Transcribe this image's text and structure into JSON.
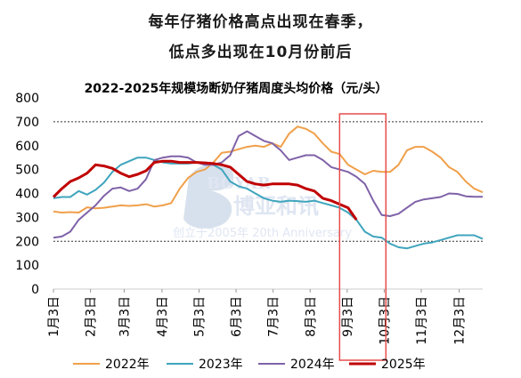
{
  "headline": {
    "line1": "每年仔猪价格高点出现在春季，",
    "line2": "低点多出现在10月份前后"
  },
  "watermark": {
    "cn": "博亚和讯",
    "en": "BOYAR",
    "tagline": "创立于2005年 20th Anniversary"
  },
  "chart_data": {
    "type": "line",
    "title": "2022-2025年规模场断奶仔猪周度头均价格（元/头）",
    "ylim": [
      0,
      800
    ],
    "yticks": [
      0,
      100,
      200,
      300,
      400,
      500,
      600,
      700,
      800
    ],
    "xlim": [
      1,
      52
    ],
    "x_tick_labels": [
      "1月3日",
      "2月3日",
      "3月3日",
      "4月3日",
      "5月3日",
      "6月3日",
      "7月3日",
      "8月3日",
      "9月3日",
      "10月3日",
      "11月3日",
      "12月3日"
    ],
    "x_tick_weeks": [
      1,
      5.4,
      9.4,
      13.9,
      18.3,
      22.7,
      27.1,
      31.5,
      35.9,
      40.3,
      44.7,
      49.2
    ],
    "reference_lines": [
      700,
      200
    ],
    "highlight_weeks": [
      35,
      40.5
    ],
    "legend_position": "bottom",
    "series": [
      {
        "name": "2022年",
        "color": "#f0a04b",
        "values": [
          325,
          320,
          322,
          320,
          342,
          338,
          340,
          345,
          350,
          348,
          350,
          355,
          345,
          350,
          360,
          420,
          465,
          490,
          500,
          530,
          570,
          575,
          585,
          595,
          600,
          595,
          610,
          595,
          650,
          680,
          670,
          650,
          610,
          575,
          565,
          520,
          500,
          480,
          495,
          490,
          490,
          520,
          580,
          595,
          595,
          575,
          550,
          510,
          490,
          450,
          420,
          405
        ]
      },
      {
        "name": "2023年",
        "color": "#3fa5bd",
        "values": [
          380,
          385,
          385,
          410,
          395,
          415,
          445,
          490,
          520,
          535,
          550,
          550,
          540,
          530,
          525,
          525,
          525,
          530,
          525,
          520,
          500,
          450,
          430,
          420,
          400,
          380,
          370,
          365,
          370,
          368,
          365,
          370,
          360,
          350,
          340,
          320,
          290,
          240,
          220,
          215,
          190,
          175,
          170,
          180,
          190,
          195,
          205,
          215,
          225,
          225,
          225,
          210
        ]
      },
      {
        "name": "2024年",
        "color": "#7f62a8",
        "values": [
          215,
          220,
          240,
          290,
          320,
          350,
          390,
          420,
          425,
          410,
          420,
          460,
          540,
          550,
          555,
          555,
          550,
          530,
          520,
          520,
          530,
          560,
          640,
          660,
          640,
          620,
          610,
          580,
          540,
          550,
          560,
          560,
          540,
          510,
          500,
          490,
          470,
          440,
          370,
          310,
          305,
          315,
          340,
          365,
          375,
          380,
          385,
          400,
          398,
          388,
          386,
          386
        ]
      },
      {
        "name": "2025年",
        "color": "#c00000",
        "values": [
          385,
          420,
          450,
          465,
          485,
          520,
          515,
          505,
          485,
          470,
          480,
          495,
          530,
          535,
          535,
          530,
          530,
          530,
          528,
          525,
          520,
          510,
          480,
          450,
          440,
          435,
          440,
          440,
          440,
          435,
          420,
          410,
          380,
          370,
          355,
          340,
          290
        ]
      }
    ]
  }
}
